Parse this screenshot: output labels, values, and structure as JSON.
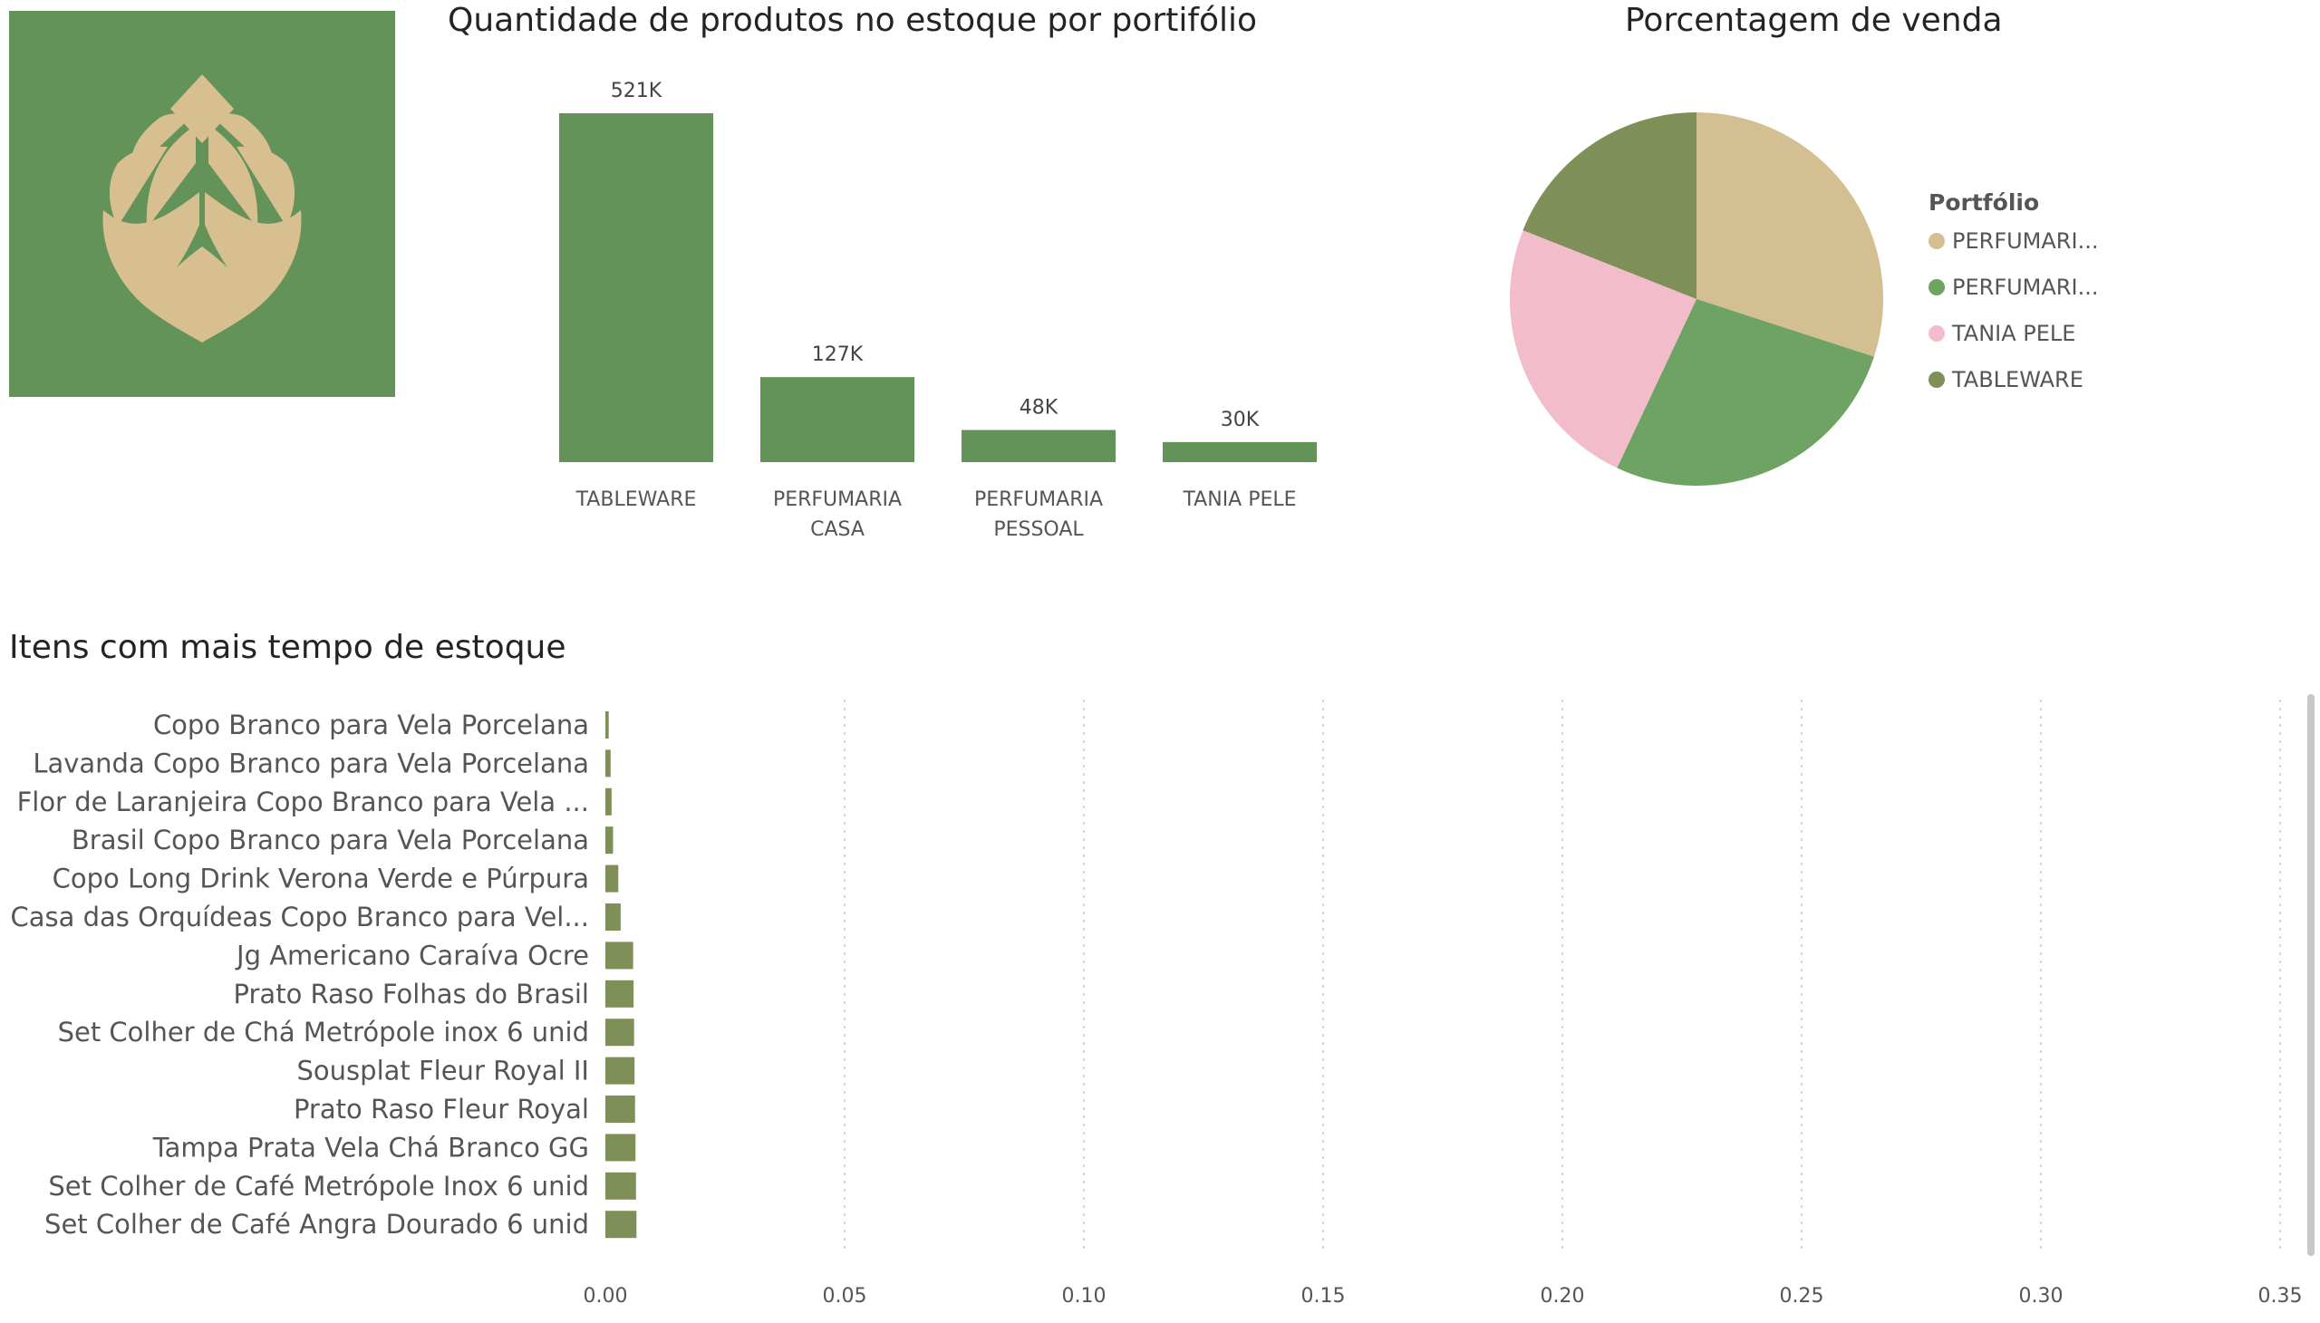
{
  "colors": {
    "green": "#64935a",
    "tan": "#d4bf93",
    "pink": "#f2bccb",
    "olive": "#7f8f58",
    "logo_bg": "#64935a",
    "logo_leaf": "#d7bf90"
  },
  "logo": {
    "icon": "leaf-logo-icon"
  },
  "chart_data": [
    {
      "type": "bar",
      "title": "Quantidade de produtos no estoque por portifólio",
      "categories": [
        [
          "TABLEWARE"
        ],
        [
          "PERFUMARIA",
          "CASA"
        ],
        [
          "PERFUMARIA",
          "PESSOAL"
        ],
        [
          "TANIA PELE"
        ]
      ],
      "values": [
        521000,
        127000,
        48000,
        30000
      ],
      "data_labels": [
        "521K",
        "127K",
        "48K",
        "30K"
      ],
      "grid": false
    },
    {
      "type": "pie",
      "title": "Porcentagem de venda",
      "legend_title": "Portfólio",
      "legend_position": "right",
      "legend": [
        "PERFUMARI...",
        "PERFUMARI...",
        "TANIA PELE",
        "TABLEWARE"
      ],
      "values": [
        30,
        27,
        24,
        19
      ],
      "series_colors": [
        "#d4bf93",
        "#6ea363",
        "#f2bccb",
        "#7f8f58"
      ]
    },
    {
      "type": "bar",
      "orientation": "horizontal",
      "title": "Itens com mais tempo de estoque",
      "categories": [
        "Copo Branco para Vela Porcelana",
        "Lavanda Copo Branco para Vela Porcelana",
        "Flor de Laranjeira Copo Branco para Vela ...",
        "Brasil Copo Branco para Vela Porcelana",
        "Copo Long Drink Verona Verde e Púrpura",
        "Casa das Orquídeas Copo Branco para Vel...",
        "Jg Americano Caraíva Ocre",
        "Prato Raso Folhas do Brasil",
        "Set Colher de Chá Metrópole inox 6 unid",
        "Sousplat Fleur Royal II",
        "Prato Raso Fleur Royal",
        "Tampa Prata Vela Chá Branco GG",
        "Set Colher de Café Metrópole Inox 6 unid",
        "Set Colher de Café Angra Dourado 6 unid"
      ],
      "values": [
        0.0007,
        0.0011,
        0.0013,
        0.0016,
        0.0027,
        0.0032,
        0.0058,
        0.0059,
        0.006,
        0.0061,
        0.0062,
        0.0063,
        0.0064,
        0.0065
      ],
      "xlim": [
        0,
        0.35
      ],
      "xticks": [
        "0.00",
        "0.05",
        "0.10",
        "0.15",
        "0.20",
        "0.25",
        "0.30",
        "0.35"
      ],
      "grid": true
    }
  ]
}
